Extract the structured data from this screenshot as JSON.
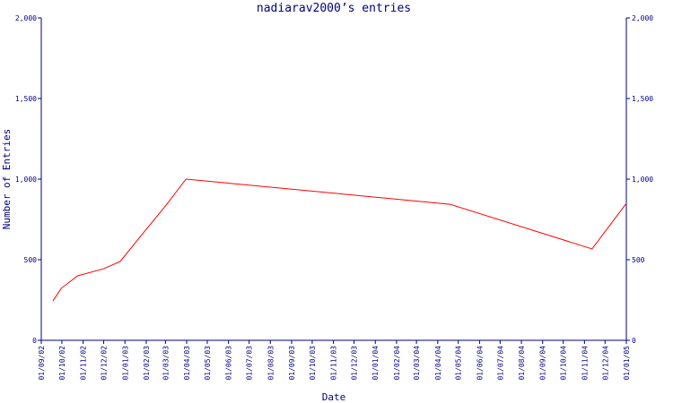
{
  "chart_data": {
    "type": "line",
    "title": "nadiarav2000’s entries",
    "x_label": "Date",
    "y_label": "Number of Entries",
    "x": [
      "2002-09-18",
      "2002-09-30",
      "2002-10-24",
      "2002-12-01",
      "2002-12-25",
      "2003-01-30",
      "2003-03-01",
      "2003-03-31",
      "2004-04-19",
      "2004-11-12",
      "2004-12-31"
    ],
    "series": [
      {
        "name": "Entries",
        "color": "#ff0000",
        "values": [
          244,
          322,
          400,
          444,
          489,
          678,
          833,
          1000,
          844,
          567,
          844
        ]
      }
    ],
    "xlim": [
      "2002-09-01",
      "2005-01-01"
    ],
    "xticks": [
      {
        "value": "2002-09-01",
        "label": "01/09/02"
      },
      {
        "value": "2002-10-01",
        "label": "01/10/02"
      },
      {
        "value": "2002-11-01",
        "label": "01/11/02"
      },
      {
        "value": "2002-12-01",
        "label": "01/12/02"
      },
      {
        "value": "2003-01-01",
        "label": "01/01/03"
      },
      {
        "value": "2003-02-01",
        "label": "01/02/03"
      },
      {
        "value": "2003-03-01",
        "label": "01/03/03"
      },
      {
        "value": "2003-04-01",
        "label": "01/04/03"
      },
      {
        "value": "2003-05-01",
        "label": "01/05/03"
      },
      {
        "value": "2003-06-01",
        "label": "01/06/03"
      },
      {
        "value": "2003-07-01",
        "label": "01/07/03"
      },
      {
        "value": "2003-08-01",
        "label": "01/08/03"
      },
      {
        "value": "2003-09-01",
        "label": "01/09/03"
      },
      {
        "value": "2003-10-01",
        "label": "01/10/03"
      },
      {
        "value": "2003-11-01",
        "label": "01/11/03"
      },
      {
        "value": "2003-12-01",
        "label": "01/12/03"
      },
      {
        "value": "2004-01-01",
        "label": "01/01/04"
      },
      {
        "value": "2004-02-01",
        "label": "01/02/04"
      },
      {
        "value": "2004-03-01",
        "label": "01/03/04"
      },
      {
        "value": "2004-04-01",
        "label": "01/04/04"
      },
      {
        "value": "2004-05-01",
        "label": "01/05/04"
      },
      {
        "value": "2004-06-01",
        "label": "01/06/04"
      },
      {
        "value": "2004-07-01",
        "label": "01/07/04"
      },
      {
        "value": "2004-08-01",
        "label": "01/08/04"
      },
      {
        "value": "2004-09-01",
        "label": "01/09/04"
      },
      {
        "value": "2004-10-01",
        "label": "01/10/04"
      },
      {
        "value": "2004-11-01",
        "label": "01/11/04"
      },
      {
        "value": "2004-12-01",
        "label": "01/12/04"
      },
      {
        "value": "2005-01-01",
        "label": "01/01/05"
      }
    ],
    "ylim": [
      0,
      2000
    ],
    "yticks": [
      0,
      500,
      {
        "value": 1000,
        "label": "1,000"
      },
      {
        "value": 1500,
        "label": "1,500"
      },
      {
        "value": 2000,
        "label": "2,000"
      }
    ],
    "axis_color": "#000080",
    "grid": false,
    "right_axis": true
  }
}
